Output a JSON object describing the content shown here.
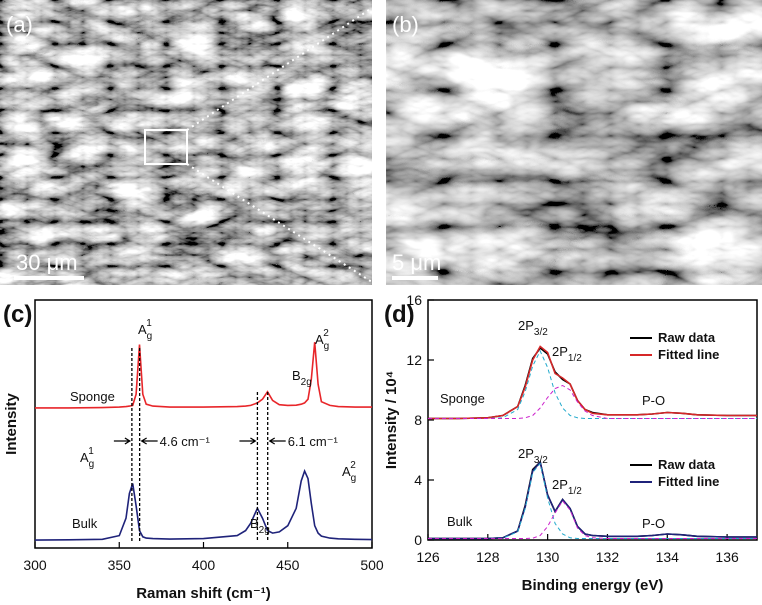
{
  "images": [
    {
      "panel_label": "(a)",
      "scale_bar": "30 μm"
    },
    {
      "panel_label": "(b)",
      "scale_bar": "5 μm"
    }
  ],
  "chart_data": [
    {
      "type": "line",
      "panel_label": "(c)",
      "xlabel": "Raman shift (cm⁻¹)",
      "ylabel": "Intensity",
      "xlim": [
        300,
        500
      ],
      "xticks": [
        300,
        350,
        400,
        450,
        500
      ],
      "ylim": [
        0,
        100
      ],
      "x": [
        300,
        320,
        340,
        350,
        354,
        356,
        358,
        360,
        362,
        364,
        366,
        370,
        380,
        400,
        420,
        425,
        428,
        432,
        435,
        438,
        441,
        445,
        450,
        455,
        458,
        460,
        462,
        464,
        466,
        468,
        470,
        475,
        480,
        490,
        500
      ],
      "series": [
        {
          "name": "Sponge",
          "color": "#e8262a",
          "values": [
            56.5,
            56.5,
            56.6,
            56.8,
            57,
            57.2,
            57.5,
            62,
            82,
            62,
            58,
            57.2,
            56.8,
            56.8,
            57,
            57.2,
            57.5,
            58.5,
            60,
            63,
            59.5,
            57.8,
            57.5,
            57.6,
            58,
            58.5,
            60,
            68,
            83,
            66,
            59,
            57.5,
            57,
            56.8,
            56.8
          ]
        },
        {
          "name": "Bulk",
          "color": "#1f237a",
          "values": [
            3.2,
            3.3,
            3.5,
            5,
            12,
            22,
            26,
            17,
            7,
            4.5,
            4,
            3.8,
            3.6,
            3.8,
            5,
            7,
            10,
            16,
            12,
            7,
            6,
            6.5,
            9,
            16,
            27,
            31,
            28,
            18,
            9,
            6,
            4.8,
            4,
            3.7,
            3.5,
            3.4
          ]
        }
      ],
      "peak_labels": [
        {
          "text": "A",
          "sub": "g",
          "sup": "1"
        },
        {
          "text": "B",
          "sub": "2g"
        },
        {
          "text": "A",
          "sub": "g",
          "sup": "2"
        },
        {
          "text": "A",
          "sub": "g",
          "sup": "1"
        },
        {
          "text": "B",
          "sub": "2g"
        },
        {
          "text": "A",
          "sub": "g",
          "sup": "2"
        }
      ],
      "shifts": [
        {
          "label": "4.6 cm⁻¹",
          "from": 357.5,
          "to": 362.1
        },
        {
          "label": "6.1 cm⁻¹",
          "from": 432,
          "to": 438.1
        }
      ]
    },
    {
      "type": "line",
      "panel_label": "(d)",
      "xlabel": "Binding energy (eV)",
      "ylabel": "Intensity / 10⁴",
      "xlim": [
        126,
        137
      ],
      "xticks": [
        126,
        128,
        130,
        132,
        134,
        136
      ],
      "ylim": [
        0,
        16
      ],
      "yticks": [
        0,
        4,
        8,
        12,
        16
      ],
      "x": [
        126,
        127,
        128,
        128.5,
        129,
        129.25,
        129.5,
        129.75,
        130,
        130.25,
        130.5,
        130.75,
        131,
        131.25,
        131.5,
        132,
        133,
        133.5,
        134,
        134.5,
        135,
        136,
        137
      ],
      "groups": [
        {
          "name": "Sponge",
          "annotations": [
            {
              "text": "2P",
              "sub": "3/2"
            },
            {
              "text": "2P",
              "sub": "1/2"
            },
            {
              "text": "P-O"
            }
          ],
          "series": [
            {
              "name": "Raw data",
              "color": "#000000",
              "values": [
                8.1,
                8.1,
                8.15,
                8.3,
                8.9,
                10.3,
                12.1,
                12.8,
                12.4,
                11.2,
                10.7,
                10.4,
                9.3,
                8.7,
                8.5,
                8.35,
                8.35,
                8.4,
                8.5,
                8.45,
                8.35,
                8.3,
                8.3
              ]
            },
            {
              "name": "Fitted line",
              "color": "#d62728",
              "values": [
                8.1,
                8.1,
                8.15,
                8.3,
                8.9,
                10.2,
                12.0,
                12.9,
                12.5,
                11.1,
                10.8,
                10.4,
                9.3,
                8.7,
                8.45,
                8.35,
                8.35,
                8.4,
                8.5,
                8.45,
                8.35,
                8.3,
                8.3
              ]
            },
            {
              "color": "#22aacc",
              "dashed": true,
              "values": [
                8.1,
                8.1,
                8.1,
                8.15,
                8.7,
                9.9,
                11.6,
                12.6,
                11.5,
                9.8,
                8.8,
                8.3,
                8.15,
                8.1,
                8.1,
                8.1,
                8.1,
                8.1,
                8.1,
                8.1,
                8.1,
                8.1,
                8.1
              ]
            },
            {
              "color": "#cc22cc",
              "dashed": true,
              "values": [
                8.1,
                8.1,
                8.1,
                8.1,
                8.1,
                8.15,
                8.3,
                8.8,
                9.5,
                10.1,
                10.3,
                10.0,
                9.2,
                8.6,
                8.3,
                8.1,
                8.1,
                8.1,
                8.1,
                8.1,
                8.1,
                8.1,
                8.1
              ]
            }
          ]
        },
        {
          "name": "Bulk",
          "annotations": [
            {
              "text": "2P",
              "sub": "3/2"
            },
            {
              "text": "2P",
              "sub": "1/2"
            },
            {
              "text": "P-O"
            }
          ],
          "series": [
            {
              "name": "Raw data",
              "color": "#000000",
              "values": [
                0.1,
                0.1,
                0.1,
                0.15,
                0.6,
                2.3,
                4.7,
                5.2,
                3.0,
                1.9,
                2.7,
                2.1,
                0.9,
                0.4,
                0.3,
                0.25,
                0.25,
                0.3,
                0.4,
                0.35,
                0.25,
                0.2,
                0.2
              ]
            },
            {
              "name": "Fitted line",
              "color": "#1f237a",
              "values": [
                0.1,
                0.1,
                0.1,
                0.15,
                0.6,
                2.2,
                4.6,
                5.2,
                3.0,
                1.9,
                2.7,
                2.1,
                0.9,
                0.4,
                0.3,
                0.25,
                0.25,
                0.3,
                0.4,
                0.35,
                0.25,
                0.2,
                0.2
              ]
            },
            {
              "color": "#22aacc",
              "dashed": true,
              "values": [
                0.1,
                0.1,
                0.1,
                0.12,
                0.55,
                2.1,
                4.5,
                5.1,
                2.8,
                1.1,
                0.4,
                0.15,
                0.1,
                0.1,
                0.1,
                0.1,
                0.1,
                0.1,
                0.1,
                0.1,
                0.1,
                0.1,
                0.1
              ]
            },
            {
              "color": "#cc22cc",
              "dashed": true,
              "values": [
                0.1,
                0.1,
                0.1,
                0.1,
                0.1,
                0.1,
                0.12,
                0.3,
                0.9,
                1.8,
                2.6,
                2.0,
                0.8,
                0.3,
                0.15,
                0.1,
                0.1,
                0.1,
                0.1,
                0.1,
                0.1,
                0.1,
                0.1
              ]
            }
          ]
        }
      ]
    }
  ]
}
